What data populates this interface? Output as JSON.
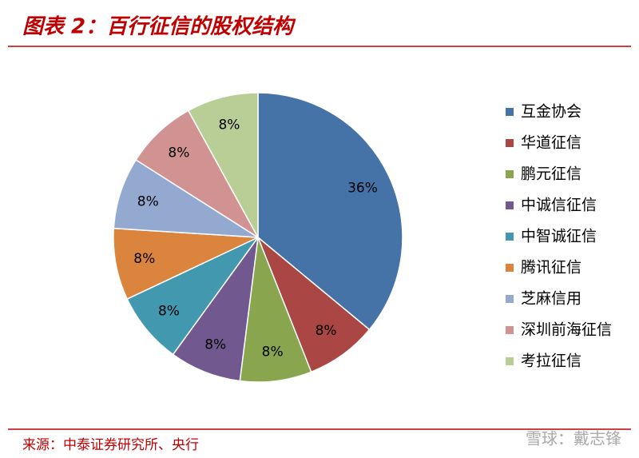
{
  "chart_data": {
    "type": "pie",
    "title": "图表 2：百行征信的股权结构",
    "categories": [
      "互金协会",
      "华道征信",
      "鹏元征信",
      "中诚信征信",
      "中智诚征信",
      "腾讯征信",
      "芝麻信用",
      "深圳前海征信",
      "考拉征信"
    ],
    "values": [
      36,
      8,
      8,
      8,
      8,
      8,
      8,
      8,
      8
    ],
    "value_labels": [
      "36%",
      "8%",
      "8%",
      "8%",
      "8%",
      "8%",
      "8%",
      "8%",
      "8%"
    ],
    "colors": [
      "#4572A7",
      "#AA4643",
      "#89A54E",
      "#71588F",
      "#4198AF",
      "#DB843D",
      "#93A9CF",
      "#D19392",
      "#B9CD96"
    ],
    "legend": "right"
  },
  "footer": {
    "source": "来源：中泰证券研究所、央行",
    "watermark": "雪球：戴志锋"
  }
}
